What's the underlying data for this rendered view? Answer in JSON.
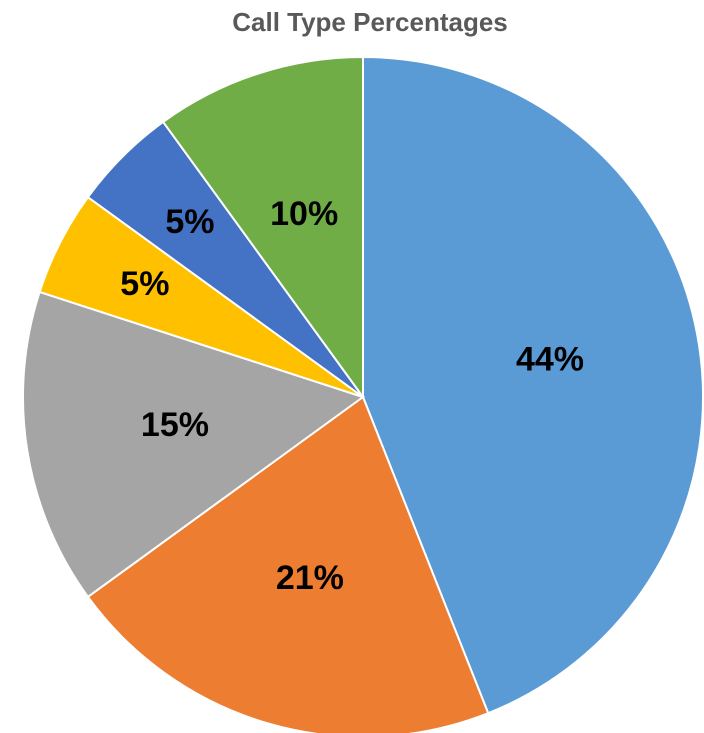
{
  "chart_data": {
    "type": "pie",
    "title": "Call Type Percentages",
    "values": [
      44,
      21,
      15,
      5,
      5,
      10
    ],
    "value_labels": [
      "44%",
      "21%",
      "15%",
      "5%",
      "5%",
      "10%"
    ],
    "colors": [
      "#5b9bd5",
      "#ed7d31",
      "#a5a5a5",
      "#ffc000",
      "#4472c4",
      "#70ad47"
    ]
  }
}
